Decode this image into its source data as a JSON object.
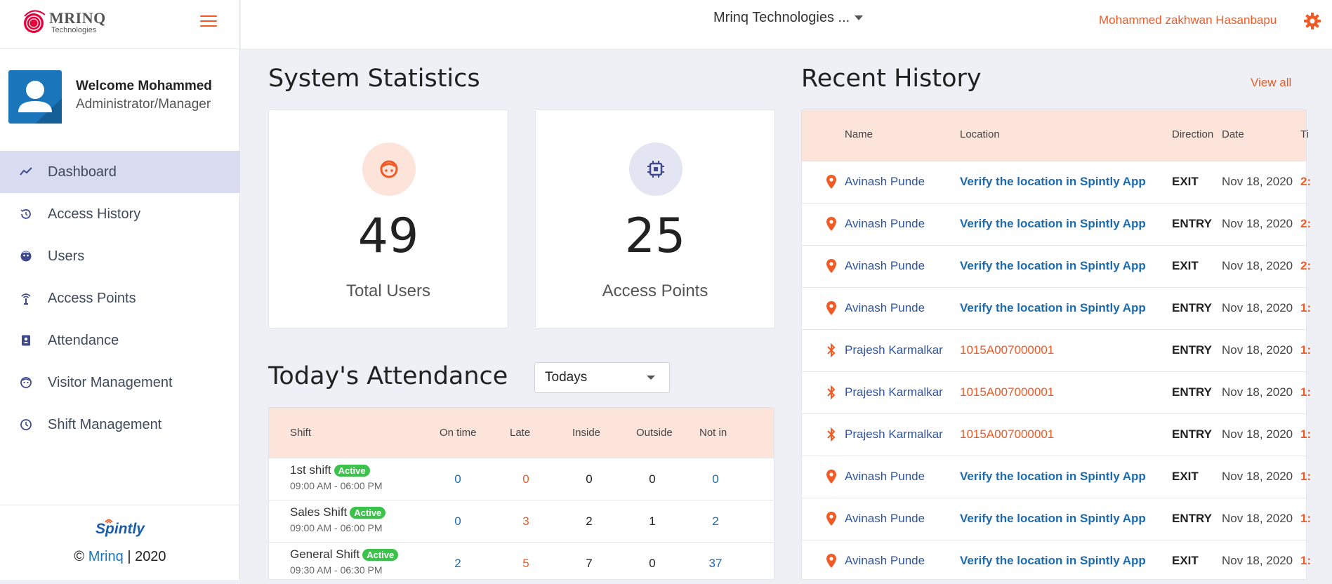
{
  "logo": {
    "brand": "MRINQ",
    "sub": "Technologies"
  },
  "header": {
    "org": "Mrinq Technologies ...",
    "user": "Mohammed zakhwan Hasanbapu"
  },
  "profile": {
    "welcome": "Welcome Mohammed",
    "role": "Administrator/Manager"
  },
  "nav": {
    "items": [
      {
        "label": "Dashboard",
        "icon": "chart-line-icon",
        "active": true
      },
      {
        "label": "Access History",
        "icon": "history-icon"
      },
      {
        "label": "Users",
        "icon": "users-icon"
      },
      {
        "label": "Access Points",
        "icon": "access-point-icon"
      },
      {
        "label": "Attendance",
        "icon": "attendance-icon"
      },
      {
        "label": "Visitor Management",
        "icon": "visitor-icon"
      },
      {
        "label": "Shift Management",
        "icon": "clock-icon"
      }
    ]
  },
  "footer": {
    "brand": "Spintly",
    "copy_prefix": "©",
    "copy_link": "Mrinq",
    "copy_suffix": "| 2020"
  },
  "stats": {
    "title": "System Statistics",
    "cards": [
      {
        "value": "49",
        "label": "Total Users",
        "icon": "face-icon"
      },
      {
        "value": "25",
        "label": "Access Points",
        "icon": "chip-icon"
      }
    ]
  },
  "attendance": {
    "title": "Today's Attendance",
    "filter": "Todays",
    "headers": [
      "Shift",
      "On time",
      "Late",
      "Inside",
      "Outside",
      "Not in"
    ],
    "rows": [
      {
        "shift": "1st shift",
        "badge": "Active",
        "time": "09:00 AM - 06:00 PM",
        "values": [
          "0",
          "0",
          "0",
          "0",
          "0"
        ]
      },
      {
        "shift": "Sales Shift",
        "badge": "Active",
        "time": "09:00 AM - 06:00 PM",
        "values": [
          "0",
          "3",
          "2",
          "1",
          "2"
        ]
      },
      {
        "shift": "General Shift",
        "badge": "Active",
        "time": "09:30 AM - 06:30 PM",
        "values": [
          "2",
          "5",
          "7",
          "0",
          "37"
        ]
      }
    ]
  },
  "history": {
    "title": "Recent History",
    "view_all": "View all",
    "headers": [
      "Name",
      "Location",
      "Direction",
      "Date",
      "Ti"
    ],
    "rows": [
      {
        "icon": "location-pin-icon",
        "name": "Avinash Punde",
        "location": "Verify the location in Spintly App",
        "loc_type": "app",
        "direction": "EXIT",
        "date": "Nov 18, 2020",
        "time": "2:"
      },
      {
        "icon": "location-pin-icon",
        "name": "Avinash Punde",
        "location": "Verify the location in Spintly App",
        "loc_type": "app",
        "direction": "ENTRY",
        "date": "Nov 18, 2020",
        "time": "2:"
      },
      {
        "icon": "location-pin-icon",
        "name": "Avinash Punde",
        "location": "Verify the location in Spintly App",
        "loc_type": "app",
        "direction": "EXIT",
        "date": "Nov 18, 2020",
        "time": "2:"
      },
      {
        "icon": "location-pin-icon",
        "name": "Avinash Punde",
        "location": "Verify the location in Spintly App",
        "loc_type": "app",
        "direction": "ENTRY",
        "date": "Nov 18, 2020",
        "time": "1:"
      },
      {
        "icon": "bluetooth-icon",
        "name": "Prajesh Karmalkar",
        "location": "1015A007000001",
        "loc_type": "dev",
        "direction": "ENTRY",
        "date": "Nov 18, 2020",
        "time": "1:"
      },
      {
        "icon": "bluetooth-icon",
        "name": "Prajesh Karmalkar",
        "location": "1015A007000001",
        "loc_type": "dev",
        "direction": "ENTRY",
        "date": "Nov 18, 2020",
        "time": "1:"
      },
      {
        "icon": "bluetooth-icon",
        "name": "Prajesh Karmalkar",
        "location": "1015A007000001",
        "loc_type": "dev",
        "direction": "ENTRY",
        "date": "Nov 18, 2020",
        "time": "1:"
      },
      {
        "icon": "location-pin-icon",
        "name": "Avinash Punde",
        "location": "Verify the location in Spintly App",
        "loc_type": "app",
        "direction": "EXIT",
        "date": "Nov 18, 2020",
        "time": "1:"
      },
      {
        "icon": "location-pin-icon",
        "name": "Avinash Punde",
        "location": "Verify the location in Spintly App",
        "loc_type": "app",
        "direction": "ENTRY",
        "date": "Nov 18, 2020",
        "time": "1:"
      },
      {
        "icon": "location-pin-icon",
        "name": "Avinash Punde",
        "location": "Verify the location in Spintly App",
        "loc_type": "app",
        "direction": "EXIT",
        "date": "Nov 18, 2020",
        "time": "1:"
      }
    ]
  },
  "colors": {
    "accent": "#f15a24",
    "link": "#2e55a4",
    "nav_active": "#d9dcf1",
    "table_head": "#fde4db",
    "badge": "#3ac24a"
  }
}
